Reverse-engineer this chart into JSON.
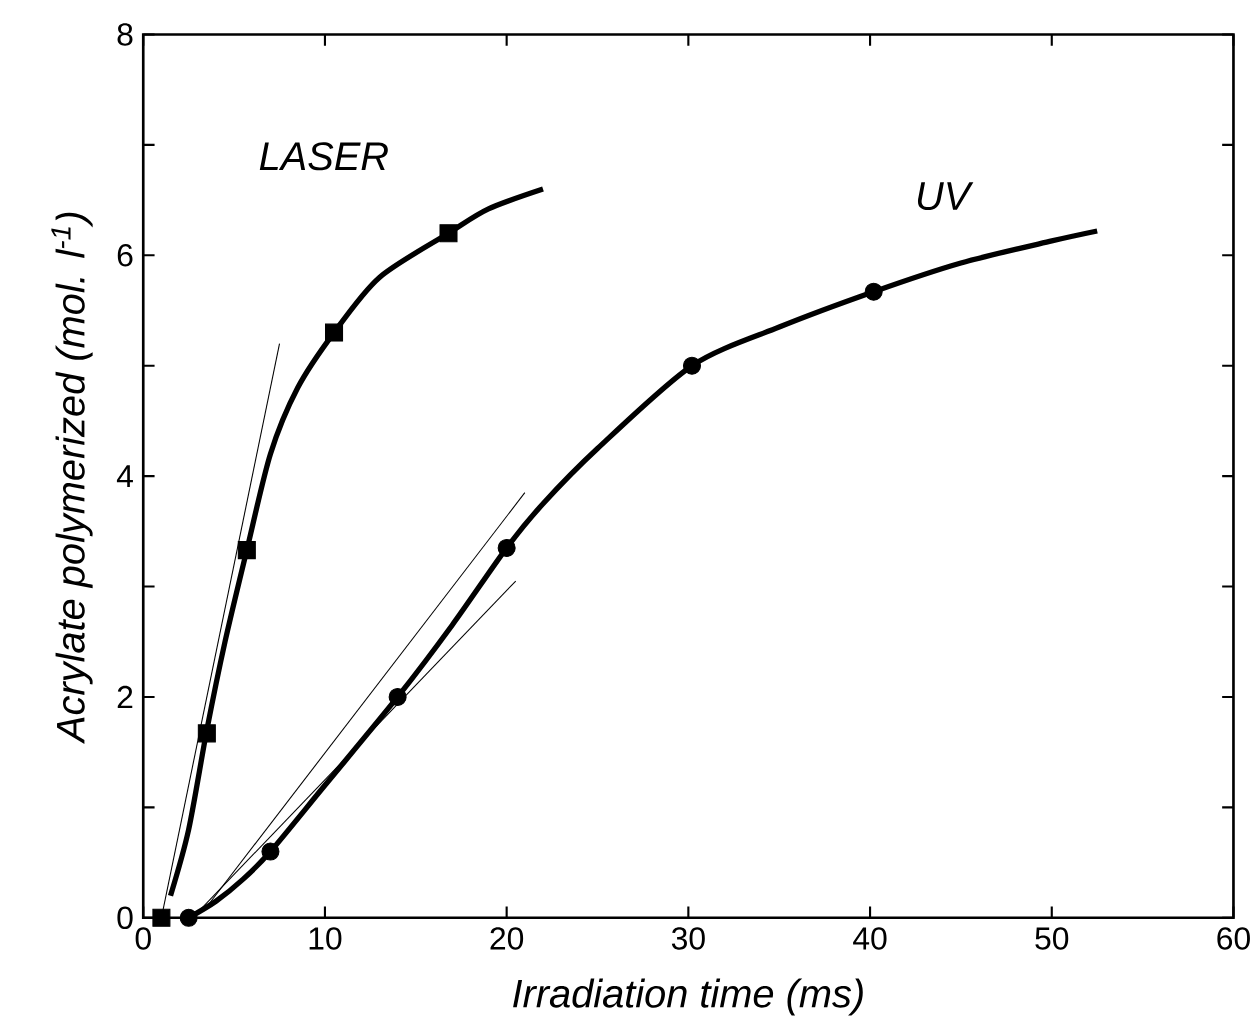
{
  "chart_data": {
    "type": "line",
    "xlabel": "Irradiation time (ms)",
    "ylabel": "Acrylate polymerized (mol. l$^{-1}$)",
    "xlim": [
      0,
      60
    ],
    "ylim": [
      0,
      8
    ],
    "xticks": [
      0,
      10,
      20,
      30,
      40,
      50,
      60
    ],
    "yticks": [
      0,
      {
        "value": 1,
        "label": null
      },
      2,
      {
        "value": 3,
        "label": null
      },
      4,
      {
        "value": 5,
        "label": null
      },
      6,
      {
        "value": 7,
        "label": null
      },
      8
    ],
    "series": [
      {
        "name": "LASER",
        "type": "scatter",
        "marker": "square",
        "color": "#000000",
        "x": [
          1,
          3.5,
          5.7,
          10.5,
          16.8
        ],
        "values": [
          0,
          1.67,
          3.33,
          5.3,
          6.2
        ]
      },
      {
        "type": "line",
        "marker": "none",
        "line_style": "solid",
        "color": "#000000",
        "x": [
          1.5,
          2.5,
          3.5,
          4.5,
          5.7,
          7,
          8.5,
          10.5,
          13,
          16.8,
          19,
          22
        ],
        "values": [
          0.2,
          0.8,
          1.7,
          2.5,
          3.33,
          4.2,
          4.8,
          5.3,
          5.8,
          6.2,
          6.42,
          6.6
        ]
      },
      {
        "type": "line",
        "marker": "none",
        "line_style": "solid",
        "color": "#000000",
        "x": [
          1,
          7.5
        ],
        "values": [
          0,
          5.2
        ]
      },
      {
        "name": "UV",
        "type": "scatter",
        "marker": "circle",
        "color": "#000000",
        "x": [
          2.5,
          7,
          14,
          20,
          30.2,
          40.2
        ],
        "values": [
          0,
          0.6,
          2.0,
          3.35,
          5.0,
          5.67
        ]
      },
      {
        "type": "line",
        "marker": "none",
        "line_style": "solid",
        "color": "#000000",
        "x": [
          2.5,
          4,
          5.5,
          7,
          10,
          14,
          17,
          20,
          22,
          25,
          30.2,
          35,
          40.2,
          45,
          50,
          52.5
        ],
        "values": [
          0,
          0.15,
          0.35,
          0.6,
          1.2,
          2.0,
          2.65,
          3.35,
          3.75,
          4.25,
          5.0,
          5.35,
          5.67,
          5.93,
          6.13,
          6.22
        ]
      },
      {
        "type": "line",
        "marker": "none",
        "line_style": "solid",
        "color": "#000000",
        "x": [
          3,
          20.5
        ],
        "values": [
          0.05,
          3.05
        ]
      },
      {
        "type": "line",
        "marker": "none",
        "line_style": "solid",
        "color": "#000000",
        "x": [
          3.5,
          21
        ],
        "values": [
          0.1,
          3.85
        ]
      }
    ]
  }
}
